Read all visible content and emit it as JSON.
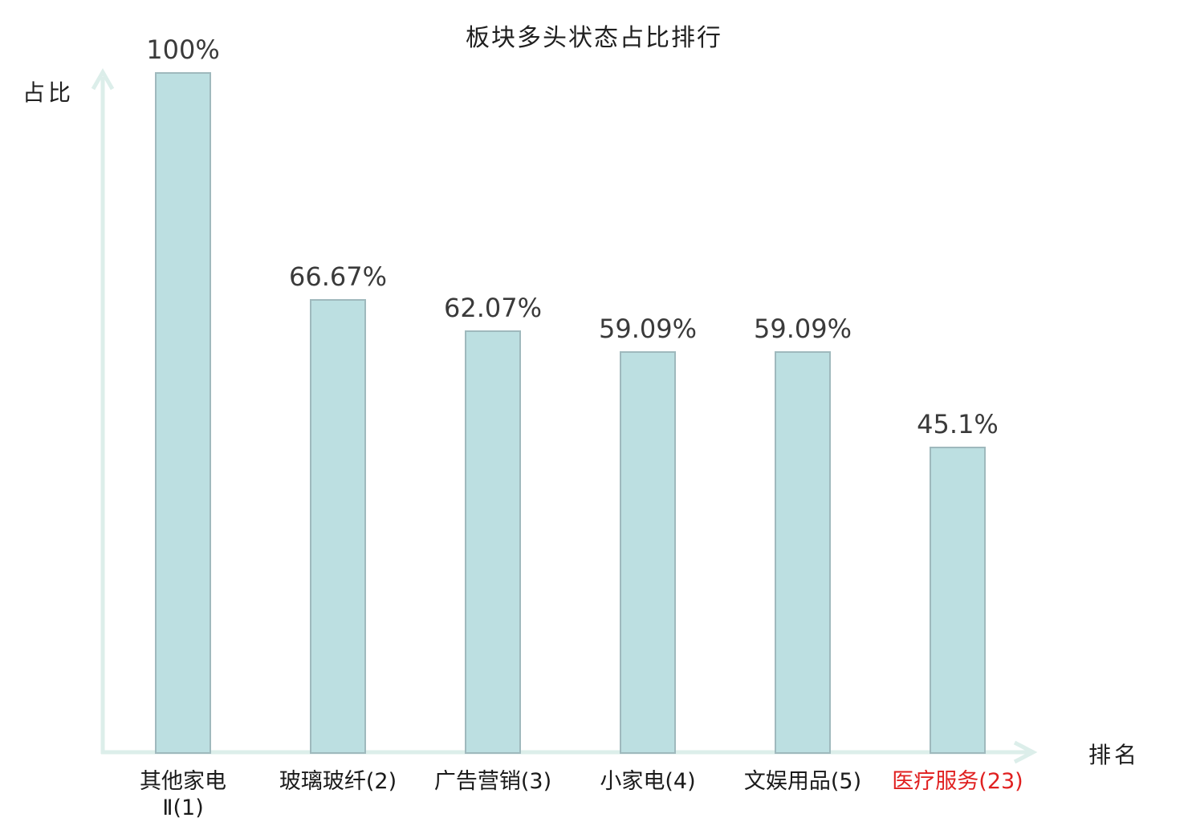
{
  "chart_data": {
    "type": "bar",
    "title": "板块多头状态占比排行",
    "ylabel": "占比",
    "xlabel": "排名",
    "categories": [
      "其他家电Ⅱ(1)",
      "玻璃玻纤(2)",
      "广告营销(3)",
      "小家电(4)",
      "文娱用品(5)",
      "医疗服务(23)"
    ],
    "category_lines": [
      [
        "其他家电",
        "Ⅱ(1)"
      ],
      [
        "玻璃玻纤(2)"
      ],
      [
        "广告营销(3)"
      ],
      [
        "小家电(4)"
      ],
      [
        "文娱用品(5)"
      ],
      [
        "医疗服务(23)"
      ]
    ],
    "values": [
      100,
      66.67,
      62.07,
      59.09,
      59.09,
      45.1
    ],
    "value_labels": [
      "100%",
      "66.67%",
      "62.07%",
      "59.09%",
      "59.09%",
      "45.1%"
    ],
    "highlighted_category_index": 5,
    "ylim": [
      0,
      100
    ],
    "grid": false,
    "legend": "none",
    "colors": {
      "bar_fill": "#bcdfe1",
      "bar_border": "#9fb9bd",
      "axis": "#dceeea",
      "text": "#3a3a3a",
      "highlight_text": "#e02020"
    }
  }
}
